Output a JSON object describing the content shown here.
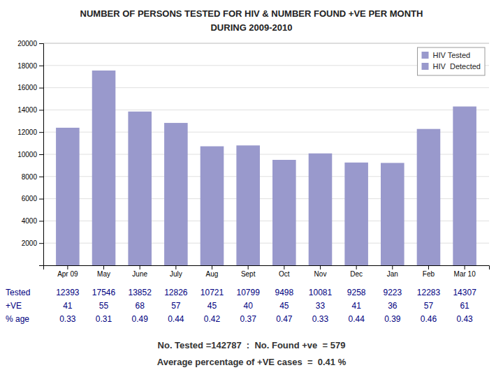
{
  "chart_data": {
    "type": "bar",
    "title": "NUMBER OF PERSONS TESTED FOR HIV & NUMBER FOUND +VE  PER MONTH",
    "subtitle": "DURING 2009-2010",
    "categories": [
      "Apr 09",
      "May",
      "June",
      "July",
      "Aug",
      "Sept",
      "Oct",
      "Nov",
      "Dec",
      "Jan",
      "Feb",
      "Mar 10"
    ],
    "series": [
      {
        "name": "HIV Tested",
        "type": "bar",
        "color": "#9999CC",
        "values": [
          12393,
          17546,
          13852,
          12826,
          10721,
          10799,
          9498,
          10081,
          9258,
          9223,
          12283,
          14307
        ]
      },
      {
        "name": "HIV  Detected",
        "type": "table",
        "color": "#9999CC",
        "values": [
          41,
          55,
          68,
          57,
          45,
          40,
          45,
          33,
          41,
          36,
          57,
          61
        ]
      }
    ],
    "percent_positive": [
      0.33,
      0.31,
      0.49,
      0.44,
      0.42,
      0.37,
      0.47,
      0.33,
      0.44,
      0.39,
      0.46,
      0.43
    ],
    "table_row_labels": [
      "Tested",
      "+VE",
      "% age"
    ],
    "annotations": [
      "No. Tested =142787  :  No. Found +ve  = 579",
      "Average percentage of +VE cases  =  0.41 %"
    ],
    "ylim": [
      0,
      20000
    ],
    "yticks": [
      2000,
      4000,
      6000,
      8000,
      10000,
      12000,
      14000,
      16000,
      18000,
      20000
    ],
    "grid": true,
    "legend": "upper right"
  }
}
